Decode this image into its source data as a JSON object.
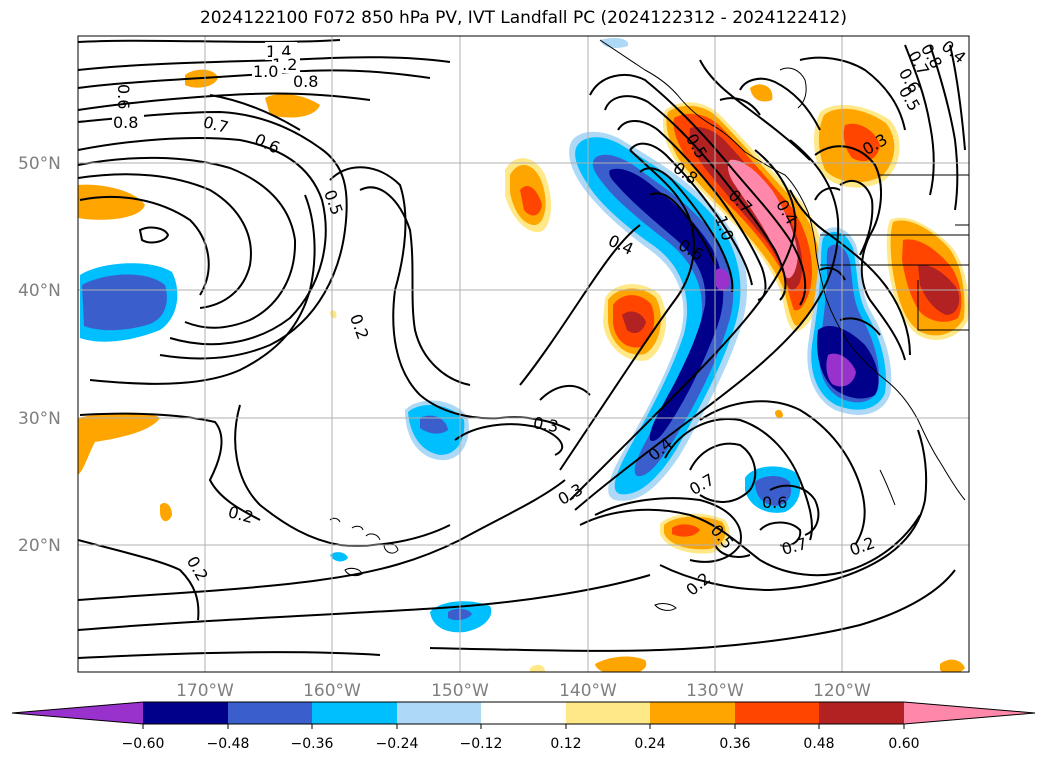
{
  "title": "2024122100 F072 850 hPa PV, IVT Landfall PC (2024122312 - 2024122412)",
  "map": {
    "region": "North-east Pacific / western North America",
    "lon_range": [
      -180,
      -110
    ],
    "lat_range": [
      10,
      60
    ],
    "lat_ticks": [
      "20°N",
      "30°N",
      "40°N",
      "50°N"
    ],
    "lon_ticks": [
      "170°W",
      "160°W",
      "150°W",
      "140°W",
      "130°W",
      "120°W"
    ],
    "grid": true,
    "contour_color": "#000000",
    "contour_labels": [
      "1.4",
      "1.2",
      "1.0",
      "0.8",
      "0.6",
      "0.8",
      "0.7",
      "0.6",
      "0.5",
      "0.2",
      "0.3",
      "0.4",
      "0.3",
      "0.2",
      "0.2",
      "0.4",
      "0.5",
      "0.8",
      "0.7",
      "1.0",
      "0.6",
      "0.4",
      "0.7",
      "0.6",
      "0.5",
      "0.7",
      "0.2",
      "0.2",
      "0.3",
      "0.5",
      "0.6",
      "0.7",
      "0.8",
      "0.4"
    ]
  },
  "colorbar": {
    "ticks": [
      "−0.60",
      "−0.48",
      "−0.36",
      "−0.24",
      "−0.12",
      "0.12",
      "0.24",
      "0.36",
      "0.48",
      "0.60"
    ],
    "colors": [
      "#9932cc",
      "#00008b",
      "#3a5fcd",
      "#00bfff",
      "#add8f6",
      "#ffffff",
      "#ffe888",
      "#ffa500",
      "#ff4500",
      "#b22222",
      "#ff88aa"
    ],
    "extend": "both"
  }
}
